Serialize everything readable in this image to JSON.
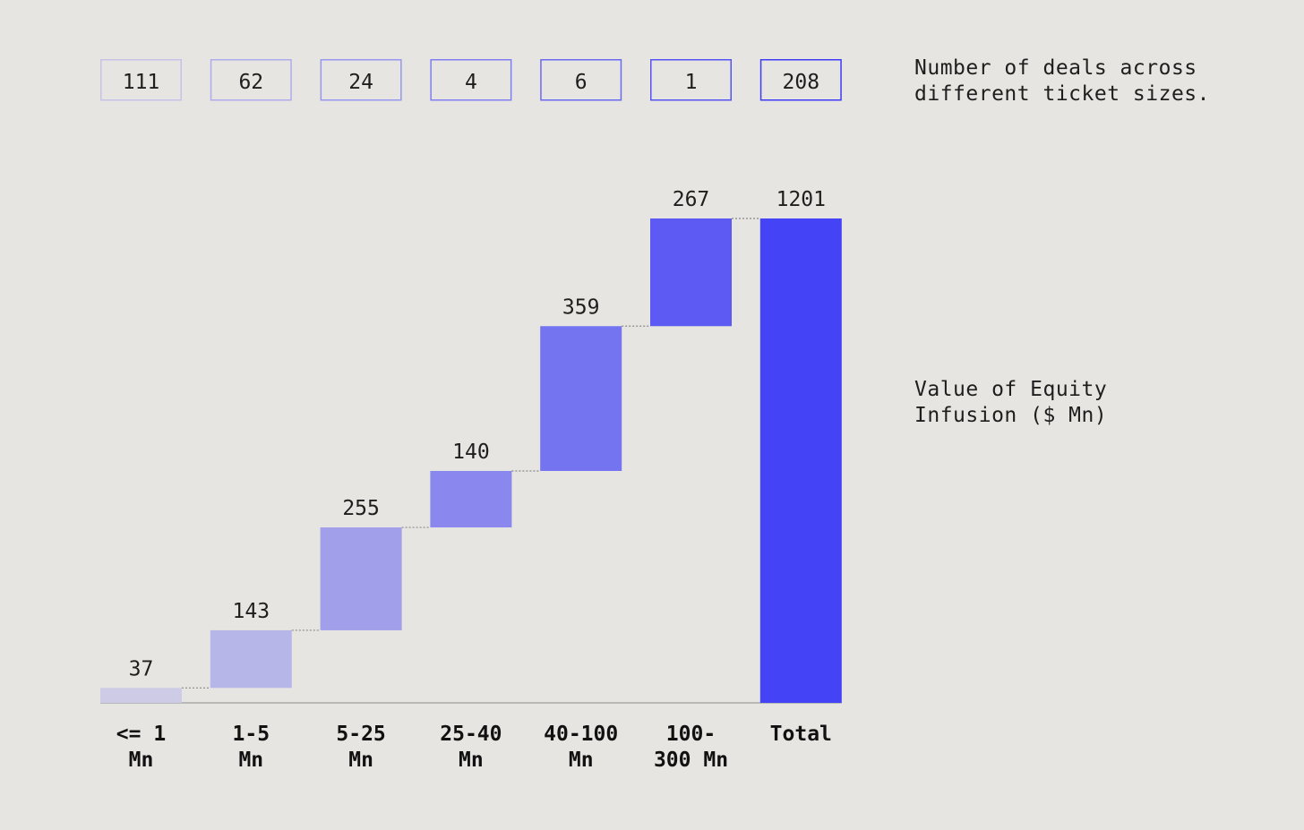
{
  "chart_data": {
    "type": "waterfall",
    "categories": [
      "<= 1 Mn",
      "1-5 Mn",
      "5-25 Mn",
      "25-40 Mn",
      "40-100 Mn",
      "100-300 Mn",
      "Total"
    ],
    "category_lines": [
      [
        "<= 1",
        "Mn"
      ],
      [
        "1-5",
        "Mn"
      ],
      [
        "5-25",
        "Mn"
      ],
      [
        "25-40",
        "Mn"
      ],
      [
        "40-100",
        "Mn"
      ],
      [
        "100-",
        "300 Mn"
      ],
      [
        "Total"
      ]
    ],
    "values": [
      37,
      143,
      255,
      140,
      359,
      267,
      1201
    ],
    "value_labels": [
      "37",
      "143",
      "255",
      "140",
      "359",
      "267",
      "1201"
    ],
    "deal_counts": [
      "111",
      "62",
      "24",
      "4",
      "6",
      "1",
      "208"
    ],
    "deal_counts_label": "Number of deals across\ndifferent ticket sizes.",
    "value_axis_label": "Value of Equity\nInfusion ($ Mn)",
    "ylim": [
      0,
      1201
    ],
    "grid": false,
    "colors": {
      "bars": [
        "#cdcbe5",
        "#b7b6e9",
        "#a19fea",
        "#8a88ee",
        "#7473f0",
        "#5d5af3",
        "#4443f6"
      ],
      "boxes": [
        "#c5c4e8",
        "#aeacec",
        "#9896ee",
        "#807ef1",
        "#6b69f2",
        "#5553f4",
        "#3e3bf6"
      ],
      "baseline": "#a9a9a9",
      "connector": "#8a8a8a"
    }
  }
}
